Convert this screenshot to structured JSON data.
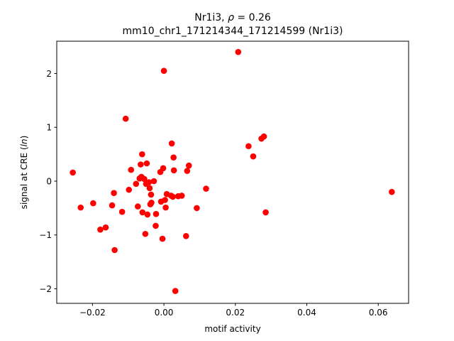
{
  "chart_data": {
    "type": "scatter",
    "title_prefix": "Nr1i3, ",
    "title_rho_symbol": "ρ",
    "title_rho_value": " = 0.26",
    "subtitle": "mm10_chr1_171214344_171214599 (Nr1i3)",
    "xlabel": "motif activity",
    "ylabel_prefix": "signal at CRE (",
    "ylabel_italic": "ln",
    "ylabel_suffix": ")",
    "xlim": [
      -0.03,
      0.0685
    ],
    "ylim": [
      -2.27,
      2.6
    ],
    "xticks": [
      -0.02,
      0.0,
      0.02,
      0.04,
      0.06
    ],
    "xtick_labels": [
      "−0.02",
      "0.00",
      "0.02",
      "0.04",
      "0.06"
    ],
    "yticks": [
      -2,
      -1,
      0,
      1,
      2
    ],
    "ytick_labels": [
      "−2",
      "−1",
      "0",
      "1",
      "2"
    ],
    "grid": false,
    "marker_color": "#ff0000",
    "points": [
      {
        "x": -0.0255,
        "y": 0.16
      },
      {
        "x": -0.0233,
        "y": -0.49
      },
      {
        "x": -0.0198,
        "y": -0.41
      },
      {
        "x": -0.0178,
        "y": -0.9
      },
      {
        "x": -0.0163,
        "y": -0.86
      },
      {
        "x": -0.0145,
        "y": -0.45
      },
      {
        "x": -0.014,
        "y": -0.22
      },
      {
        "x": -0.0138,
        "y": -1.28
      },
      {
        "x": -0.0117,
        "y": -0.57
      },
      {
        "x": -0.0107,
        "y": 1.16
      },
      {
        "x": -0.0098,
        "y": -0.16
      },
      {
        "x": -0.0092,
        "y": 0.21
      },
      {
        "x": -0.0078,
        "y": -0.05
      },
      {
        "x": -0.0073,
        "y": -0.47
      },
      {
        "x": -0.0068,
        "y": 0.05
      },
      {
        "x": -0.0065,
        "y": 0.31
      },
      {
        "x": -0.0063,
        "y": 0.08
      },
      {
        "x": -0.0061,
        "y": 0.5
      },
      {
        "x": -0.006,
        "y": -0.58
      },
      {
        "x": -0.0055,
        "y": 0.04
      },
      {
        "x": -0.0052,
        "y": -0.98
      },
      {
        "x": -0.005,
        "y": -0.05
      },
      {
        "x": -0.0048,
        "y": 0.33
      },
      {
        "x": -0.0046,
        "y": -0.62
      },
      {
        "x": -0.0042,
        "y": -0.02
      },
      {
        "x": -0.004,
        "y": -0.13
      },
      {
        "x": -0.0038,
        "y": -0.43
      },
      {
        "x": -0.0036,
        "y": -0.25
      },
      {
        "x": -0.0035,
        "y": -0.4
      },
      {
        "x": -0.0028,
        "y": 0.0
      },
      {
        "x": -0.0023,
        "y": -0.83
      },
      {
        "x": -0.0022,
        "y": -0.61
      },
      {
        "x": -0.001,
        "y": 0.17
      },
      {
        "x": -0.0008,
        "y": -0.38
      },
      {
        "x": -0.0004,
        "y": -1.07
      },
      {
        "x": -0.0002,
        "y": 0.24
      },
      {
        "x": 0.0,
        "y": 2.05
      },
      {
        "x": 0.0003,
        "y": -0.35
      },
      {
        "x": 0.0005,
        "y": -0.49
      },
      {
        "x": 0.0008,
        "y": -0.24
      },
      {
        "x": 0.002,
        "y": -0.27
      },
      {
        "x": 0.0022,
        "y": 0.7
      },
      {
        "x": 0.0025,
        "y": -0.29
      },
      {
        "x": 0.0027,
        "y": 0.44
      },
      {
        "x": 0.0028,
        "y": 0.2
      },
      {
        "x": 0.0032,
        "y": -2.04
      },
      {
        "x": 0.004,
        "y": -0.28
      },
      {
        "x": 0.005,
        "y": -0.27
      },
      {
        "x": 0.0062,
        "y": -1.02
      },
      {
        "x": 0.0065,
        "y": 0.19
      },
      {
        "x": 0.007,
        "y": 0.29
      },
      {
        "x": 0.0092,
        "y": -0.5
      },
      {
        "x": 0.0118,
        "y": -0.14
      },
      {
        "x": 0.0208,
        "y": 2.4
      },
      {
        "x": 0.0237,
        "y": 0.65
      },
      {
        "x": 0.025,
        "y": 0.46
      },
      {
        "x": 0.0273,
        "y": 0.79
      },
      {
        "x": 0.028,
        "y": 0.83
      },
      {
        "x": 0.0285,
        "y": -0.58
      },
      {
        "x": 0.0638,
        "y": -0.2
      }
    ]
  }
}
